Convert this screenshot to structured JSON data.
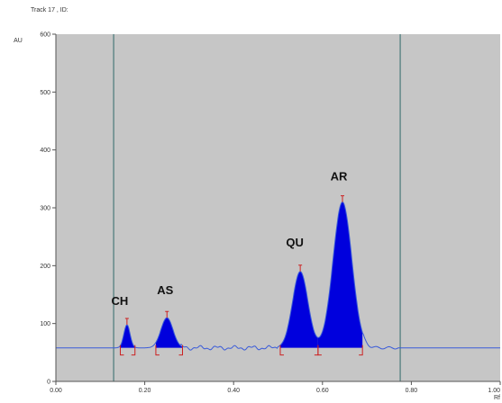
{
  "header": {
    "track_label": "Track  17 , ID:"
  },
  "chart_data": {
    "type": "line",
    "title": "Track  17 , ID:",
    "ylabel": "AU",
    "xlabel": "Rf",
    "xlim": [
      0.0,
      1.0
    ],
    "ylim": [
      0,
      600
    ],
    "x_ticks": [
      0.0,
      0.2,
      0.4,
      0.6,
      0.8,
      1.0
    ],
    "x_tick_labels": [
      "0.00",
      "0.20",
      "0.40",
      "0.60",
      "0.80",
      "1.00"
    ],
    "y_ticks": [
      0,
      100,
      200,
      300,
      400,
      500,
      600
    ],
    "y_tick_labels": [
      "0",
      "100",
      "200",
      "300",
      "400",
      "500",
      "600"
    ],
    "grid": false,
    "background_color": "#c6c6c6",
    "baseline_color": "#3a5bd9",
    "peak_color": "#0000dd",
    "marker_color": "#cc2222",
    "vertical_lines_rf": [
      0.13,
      0.775
    ],
    "baseline_au": 58,
    "peaks": [
      {
        "label": "CH",
        "rf": 0.16,
        "height_au": 98,
        "start_rf": 0.145,
        "end_rf": 0.178
      },
      {
        "label": "AS",
        "rf": 0.25,
        "height_au": 110,
        "start_rf": 0.225,
        "end_rf": 0.285
      },
      {
        "label": "QU",
        "rf": 0.55,
        "height_au": 190,
        "start_rf": 0.505,
        "end_rf": 0.59
      },
      {
        "label": "AR",
        "rf": 0.645,
        "height_au": 310,
        "start_rf": 0.59,
        "end_rf": 0.69
      }
    ]
  }
}
